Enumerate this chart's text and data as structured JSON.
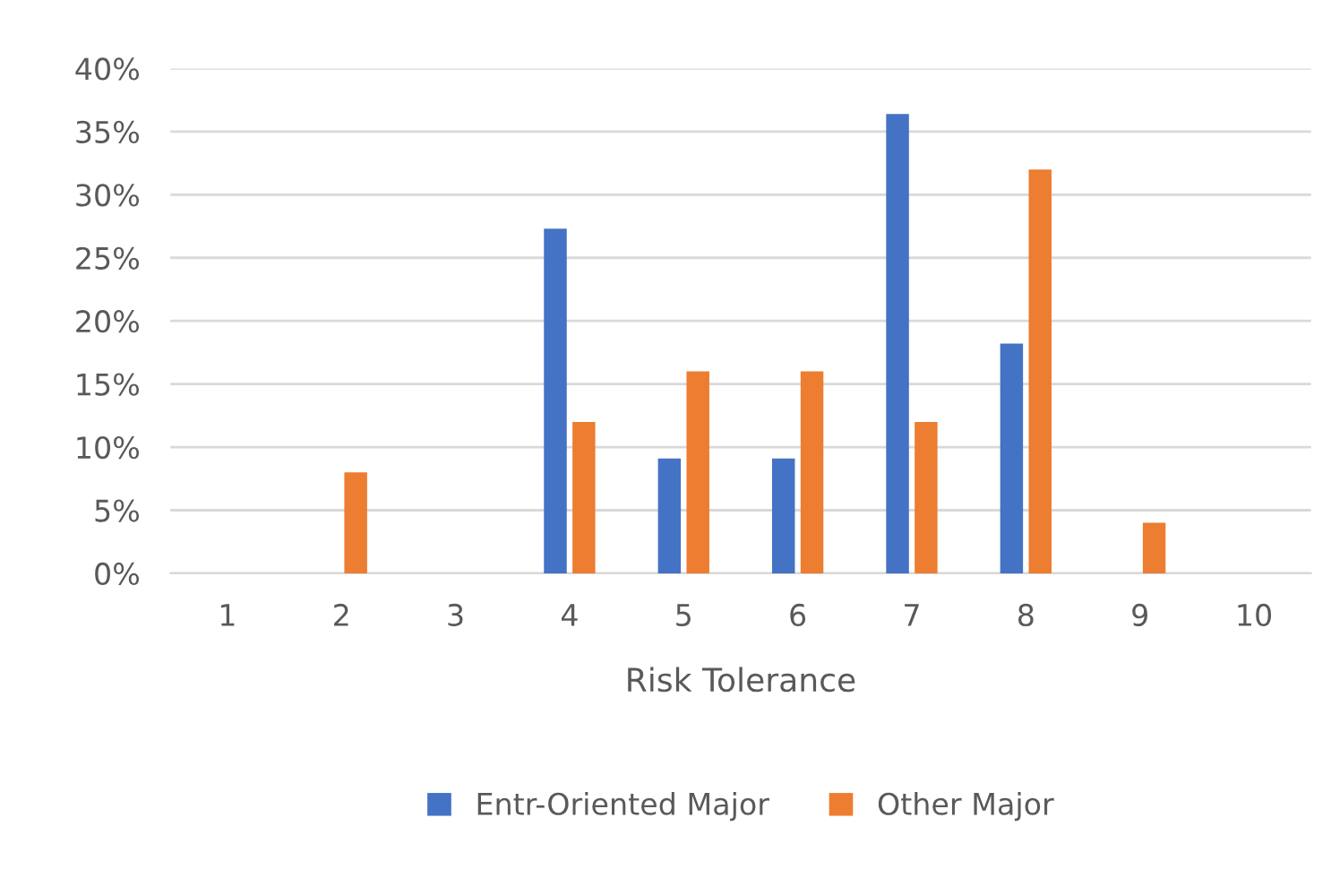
{
  "chart_data": {
    "type": "bar",
    "xlabel": "Risk Tolerance",
    "categories": [
      "1",
      "2",
      "3",
      "4",
      "5",
      "6",
      "7",
      "8",
      "9",
      "10"
    ],
    "series": [
      {
        "name": "Entr-Oriented Major",
        "color": "#4472c4",
        "values": [
          0,
          0,
          0,
          27.3,
          9.1,
          9.1,
          36.4,
          18.2,
          0,
          0
        ]
      },
      {
        "name": "Other Major",
        "color": "#ed7d31",
        "values": [
          0,
          8,
          0,
          12,
          16,
          16,
          12,
          32,
          4,
          0
        ]
      }
    ],
    "ylim": [
      0,
      40
    ],
    "yticks": [
      {
        "value": 0,
        "label": "0%"
      },
      {
        "value": 5,
        "label": "5%"
      },
      {
        "value": 10,
        "label": "10%"
      },
      {
        "value": 15,
        "label": "15%"
      },
      {
        "value": 20,
        "label": "20%"
      },
      {
        "value": 25,
        "label": "25%"
      },
      {
        "value": 30,
        "label": "30%"
      },
      {
        "value": 35,
        "label": "35%"
      },
      {
        "value": 40,
        "label": "40%"
      }
    ],
    "grid": "y",
    "legend": "bottom"
  }
}
